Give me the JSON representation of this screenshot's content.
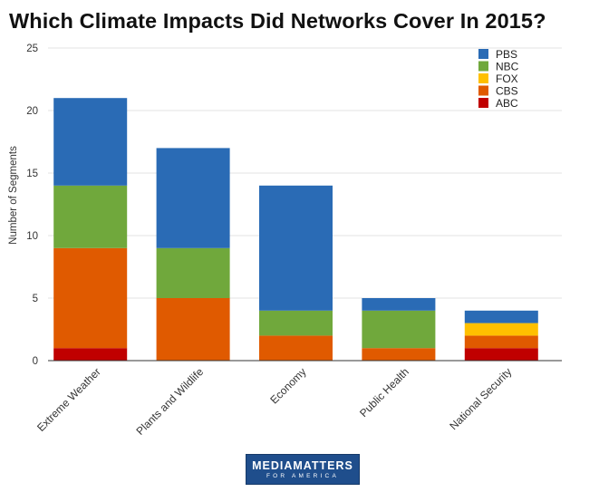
{
  "chart_data": {
    "type": "bar",
    "stacked": true,
    "title": "Which Climate Impacts Did Networks Cover In 2015?",
    "xlabel": "",
    "ylabel": "Number of Segments",
    "ylim": [
      0,
      25
    ],
    "yticks": [
      0,
      5,
      10,
      15,
      20,
      25
    ],
    "grid": true,
    "legend_position": "top-right",
    "categories": [
      "Extreme Weather",
      "Plants and Wildlife",
      "Economy",
      "Public Health",
      "National Security"
    ],
    "series": [
      {
        "name": "ABC",
        "color": "#c00000",
        "values": [
          1,
          0,
          0,
          0,
          1
        ]
      },
      {
        "name": "CBS",
        "color": "#e05a00",
        "values": [
          8,
          5,
          2,
          1,
          1
        ]
      },
      {
        "name": "FOX",
        "color": "#ffc000",
        "values": [
          0,
          0,
          0,
          0,
          1
        ]
      },
      {
        "name": "NBC",
        "color": "#70a83c",
        "values": [
          5,
          4,
          2,
          3,
          0
        ]
      },
      {
        "name": "PBS",
        "color": "#2a6bb5",
        "values": [
          7,
          8,
          10,
          1,
          1
        ]
      }
    ],
    "legend_order": [
      "PBS",
      "NBC",
      "FOX",
      "CBS",
      "ABC"
    ]
  },
  "logo": {
    "line1": "MEDIAMATTERS",
    "line2": "FOR AMERICA"
  }
}
